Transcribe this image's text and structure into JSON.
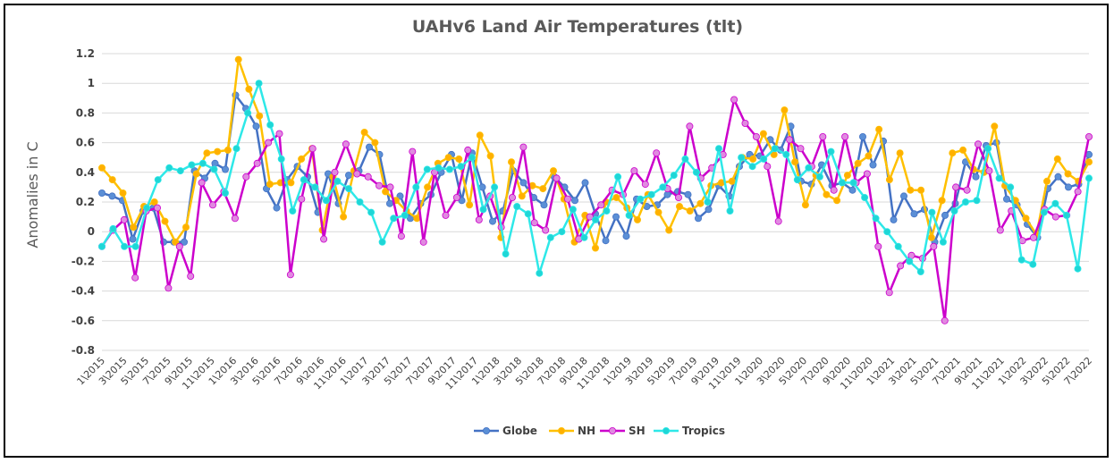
{
  "chart_data": {
    "type": "line",
    "title": "UAHv6 Land Air Temperatures (tlt)",
    "ylabel": "Anomalies in C",
    "xlabel": "",
    "ylim": [
      -0.8,
      1.2
    ],
    "yticks": [
      "1.2",
      "1",
      "0.8",
      "0.6",
      "0.4",
      "0.2",
      "0",
      "-0.2",
      "-0.4",
      "-0.6",
      "-0.8"
    ],
    "ytick_values": [
      1.2,
      1.0,
      0.8,
      0.6,
      0.4,
      0.2,
      0,
      -0.2,
      -0.4,
      -0.6,
      -0.8
    ],
    "grid": true,
    "legend_position": "bottom",
    "x_labels": [
      "1\\2015",
      "3\\2015",
      "5\\2015",
      "7\\2015",
      "9\\2015",
      "11\\2015",
      "1\\2016",
      "3\\2016",
      "5\\2016",
      "7\\2016",
      "9\\2016",
      "11\\2016",
      "1\\2017",
      "3\\2017",
      "5\\2017",
      "7\\2017",
      "9\\2017",
      "11\\2017",
      "1\\2018",
      "3\\2018",
      "5\\2018",
      "7\\2018",
      "9\\2018",
      "11\\2018",
      "1\\2019",
      "3\\2019",
      "5\\2019",
      "7\\2019",
      "9\\2019",
      "11\\2019",
      "1\\2020",
      "3\\2020",
      "5\\2020",
      "7\\2020",
      "9\\2020",
      "11\\2020",
      "1\\2021",
      "3\\2021",
      "5\\2021",
      "7\\2021",
      "9\\2021",
      "11\\2021",
      "1\\2022",
      "3\\2022",
      "5\\2022",
      "7\\2022"
    ],
    "series": [
      {
        "name": "Globe",
        "color": "#4472c4",
        "marker": "#5b8fd6",
        "values": [
          0.26,
          0.24,
          0.21,
          -0.05,
          0.14,
          0.16,
          -0.07,
          -0.07,
          -0.07,
          0.41,
          0.36,
          0.46,
          0.42,
          0.92,
          0.83,
          0.71,
          0.29,
          0.16,
          0.35,
          0.44,
          0.37,
          0.13,
          0.39,
          0.19,
          0.38,
          0.41,
          0.57,
          0.52,
          0.19,
          0.24,
          0.09,
          0.19,
          0.25,
          0.4,
          0.52,
          0.21,
          0.53,
          0.3,
          0.07,
          0.14,
          0.41,
          0.33,
          0.23,
          0.18,
          0.37,
          0.3,
          0.21,
          0.33,
          0.12,
          -0.06,
          0.1,
          -0.03,
          0.22,
          0.17,
          0.18,
          0.25,
          0.27,
          0.25,
          0.09,
          0.15,
          0.31,
          0.24,
          0.44,
          0.52,
          0.51,
          0.62,
          0.55,
          0.71,
          0.34,
          0.32,
          0.45,
          0.31,
          0.33,
          0.28,
          0.64,
          0.45,
          0.61,
          0.08,
          0.24,
          0.12,
          0.15,
          -0.07,
          0.11,
          0.19,
          0.47,
          0.37,
          0.58,
          0.6,
          0.22,
          0.18,
          0.05,
          -0.04,
          0.29,
          0.37,
          0.3,
          0.32,
          0.52
        ]
      },
      {
        "name": "NH",
        "color": "#ffc000",
        "marker": "#ffb000",
        "values": [
          0.43,
          0.35,
          0.26,
          0.03,
          0.17,
          0.2,
          0.07,
          -0.07,
          0.03,
          0.39,
          0.53,
          0.54,
          0.55,
          1.16,
          0.96,
          0.78,
          0.32,
          0.33,
          0.33,
          0.49,
          0.56,
          0.01,
          0.37,
          0.1,
          0.41,
          0.67,
          0.6,
          0.27,
          0.21,
          0.14,
          0.09,
          0.3,
          0.46,
          0.5,
          0.49,
          0.18,
          0.65,
          0.51,
          -0.04,
          0.47,
          0.24,
          0.31,
          0.29,
          0.41,
          0.22,
          -0.07,
          0.11,
          -0.11,
          0.2,
          0.23,
          0.16,
          0.08,
          0.25,
          0.13,
          0.01,
          0.17,
          0.14,
          0.19,
          0.31,
          0.33,
          0.34,
          0.5,
          0.49,
          0.66,
          0.52,
          0.82,
          0.47,
          0.18,
          0.38,
          0.25,
          0.21,
          0.38,
          0.46,
          0.51,
          0.69,
          0.35,
          0.53,
          0.28,
          0.28,
          -0.04,
          0.21,
          0.53,
          0.55,
          0.42,
          0.4,
          0.71,
          0.31,
          0.21,
          0.09,
          -0.02,
          0.34,
          0.49,
          0.39,
          0.34,
          0.47
        ]
      },
      {
        "name": "SH",
        "color": "#cc00cc",
        "marker": "#e08ae0",
        "values": [
          -0.1,
          0.01,
          0.08,
          -0.31,
          0.14,
          0.16,
          -0.38,
          -0.1,
          -0.3,
          0.33,
          0.18,
          0.27,
          0.09,
          0.37,
          0.46,
          0.6,
          0.66,
          -0.29,
          0.22,
          0.56,
          -0.05,
          0.4,
          0.59,
          0.39,
          0.37,
          0.31,
          0.3,
          -0.03,
          0.54,
          -0.07,
          0.4,
          0.11,
          0.23,
          0.55,
          0.08,
          0.24,
          0.03,
          0.23,
          0.57,
          0.06,
          0.01,
          0.36,
          0.22,
          -0.05,
          0.1,
          0.18,
          0.28,
          0.25,
          0.41,
          0.32,
          0.53,
          0.29,
          0.23,
          0.71,
          0.36,
          0.43,
          0.52,
          0.89,
          0.73,
          0.64,
          0.44,
          0.07,
          0.62,
          0.56,
          0.44,
          0.64,
          0.28,
          0.64,
          0.33,
          0.39,
          -0.1,
          -0.41,
          -0.23,
          -0.16,
          -0.18,
          -0.1,
          -0.6,
          0.3,
          0.28,
          0.59,
          0.41,
          0.01,
          0.14,
          -0.06,
          -0.04,
          0.15,
          0.1,
          0.11,
          0.27,
          0.64
        ]
      },
      {
        "name": "Tropics",
        "color": "#2ee8e8",
        "marker": "#1fd6d6",
        "values": [
          -0.1,
          0.02,
          -0.1,
          -0.1,
          0.16,
          0.35,
          0.43,
          0.41,
          0.45,
          0.46,
          0.42,
          0.26,
          0.56,
          0.8,
          1.0,
          0.72,
          0.49,
          0.14,
          0.35,
          0.3,
          0.21,
          0.34,
          0.29,
          0.2,
          0.13,
          -0.07,
          0.09,
          0.11,
          0.3,
          0.42,
          0.43,
          0.42,
          0.44,
          0.5,
          0.15,
          0.3,
          -0.15,
          0.17,
          0.12,
          -0.28,
          -0.04,
          0.0,
          0.15,
          -0.04,
          0.08,
          0.14,
          0.37,
          0.11,
          0.22,
          0.25,
          0.3,
          0.38,
          0.49,
          0.4,
          0.2,
          0.56,
          0.14,
          0.5,
          0.44,
          0.49,
          0.56,
          0.52,
          0.35,
          0.43,
          0.37,
          0.54,
          0.33,
          0.33,
          0.23,
          0.09,
          0.0,
          -0.1,
          -0.2,
          -0.27,
          0.13,
          -0.07,
          0.14,
          0.2,
          0.21,
          0.56,
          0.36,
          0.3,
          -0.19,
          -0.22,
          0.13,
          0.19,
          0.11,
          -0.25,
          0.36
        ]
      }
    ]
  }
}
